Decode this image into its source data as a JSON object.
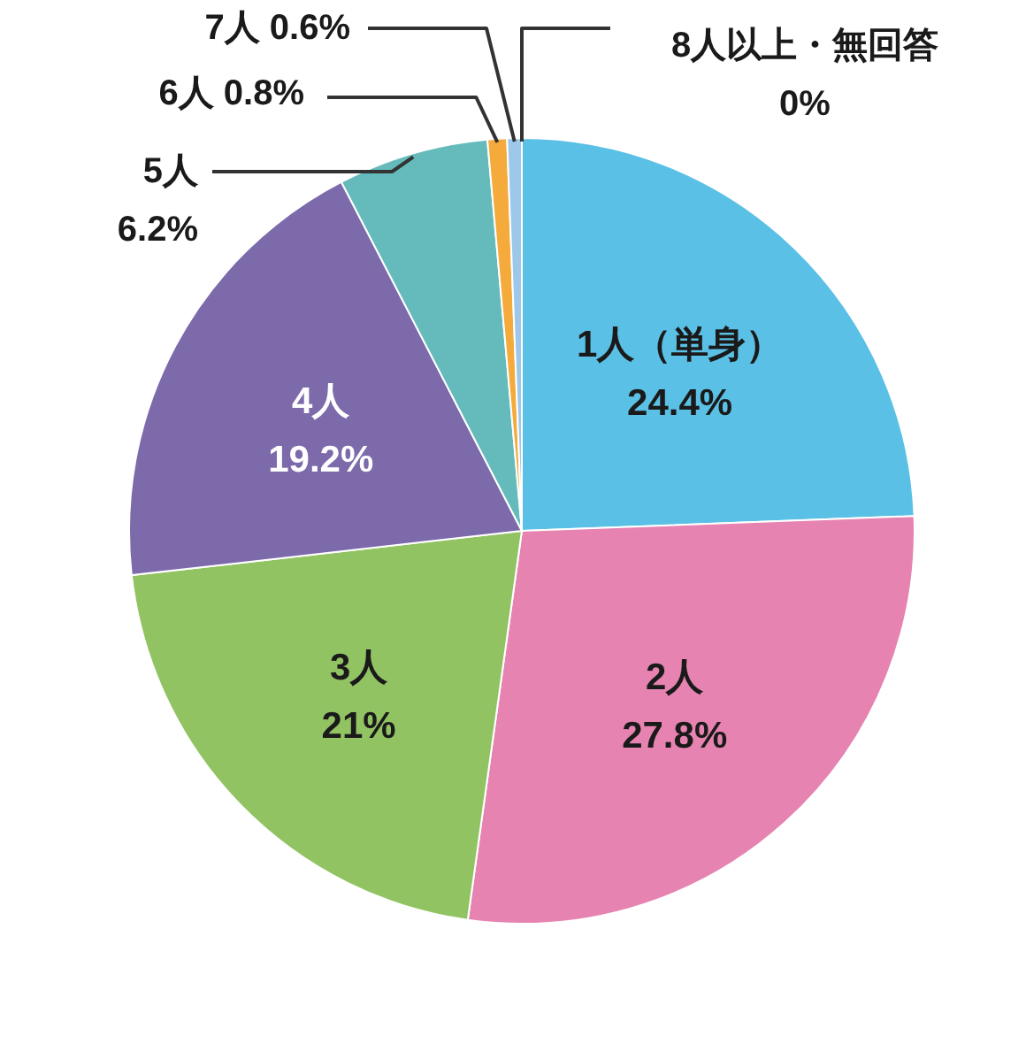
{
  "chart_data": {
    "type": "pie",
    "categories": [
      "1人（単身）",
      "2人",
      "3人",
      "4人",
      "5人",
      "6人",
      "7人",
      "8人以上・無回答"
    ],
    "values": [
      24.4,
      27.8,
      21,
      19.2,
      6.2,
      0.8,
      0.6,
      0
    ],
    "value_labels": [
      "24.4%",
      "27.8%",
      "21%",
      "19.2%",
      "6.2%",
      "0.8%",
      "0.6%",
      "0%"
    ],
    "colors": [
      "#5bc0e5",
      "#e683b1",
      "#92c363",
      "#7c6aaa",
      "#65bbbc",
      "#f5aa3c",
      "#9dc8ea",
      "#a8d4f0"
    ]
  }
}
